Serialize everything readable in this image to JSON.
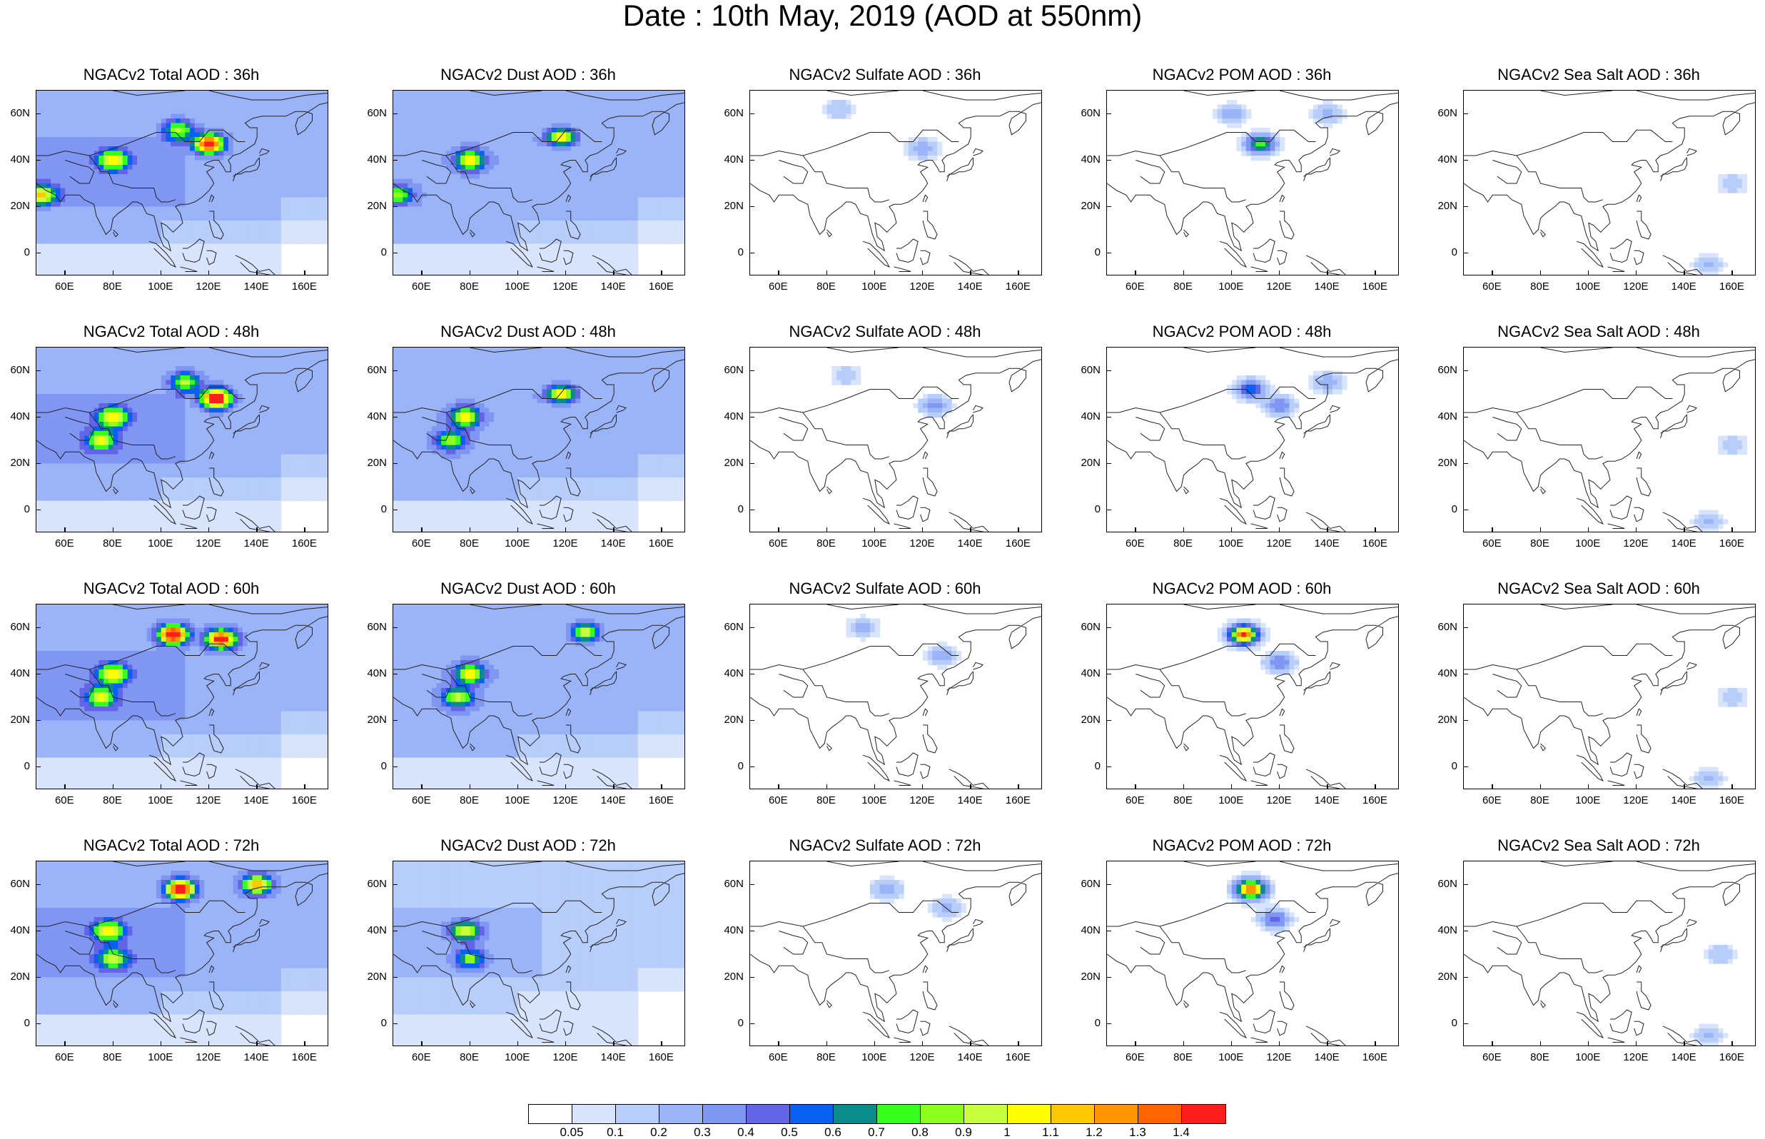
{
  "figure": {
    "title": "Date : 10th May, 2019 (AOD at 550nm)"
  },
  "axes": {
    "lat_labels": [
      "60N",
      "40N",
      "20N",
      "0"
    ],
    "lon_labels": [
      "60E",
      "80E",
      "100E",
      "120E",
      "140E",
      "160E"
    ],
    "lat_range": [
      -10,
      70
    ],
    "lon_range": [
      48,
      170
    ]
  },
  "panels": [
    {
      "title": "NGACv2 Total AOD : 36h",
      "species": "total",
      "hour": 36
    },
    {
      "title": "NGACv2 Dust AOD : 36h",
      "species": "dust",
      "hour": 36
    },
    {
      "title": "NGACv2 Sulfate AOD : 36h",
      "species": "sulfate",
      "hour": 36
    },
    {
      "title": "NGACv2 POM AOD : 36h",
      "species": "pom",
      "hour": 36
    },
    {
      "title": "NGACv2 Sea Salt AOD : 36h",
      "species": "seasalt",
      "hour": 36
    },
    {
      "title": "NGACv2 Total AOD : 48h",
      "species": "total",
      "hour": 48
    },
    {
      "title": "NGACv2 Dust AOD : 48h",
      "species": "dust",
      "hour": 48
    },
    {
      "title": "NGACv2 Sulfate AOD : 48h",
      "species": "sulfate",
      "hour": 48
    },
    {
      "title": "NGACv2 POM AOD : 48h",
      "species": "pom",
      "hour": 48
    },
    {
      "title": "NGACv2 Sea Salt AOD : 48h",
      "species": "seasalt",
      "hour": 48
    },
    {
      "title": "NGACv2 Total AOD : 60h",
      "species": "total",
      "hour": 60
    },
    {
      "title": "NGACv2 Dust AOD : 60h",
      "species": "dust",
      "hour": 60
    },
    {
      "title": "NGACv2 Sulfate AOD : 60h",
      "species": "sulfate",
      "hour": 60
    },
    {
      "title": "NGACv2 POM AOD : 60h",
      "species": "pom",
      "hour": 60
    },
    {
      "title": "NGACv2 Sea Salt AOD : 60h",
      "species": "seasalt",
      "hour": 60
    },
    {
      "title": "NGACv2 Total AOD : 72h",
      "species": "total",
      "hour": 72
    },
    {
      "title": "NGACv2 Dust AOD : 72h",
      "species": "dust",
      "hour": 72
    },
    {
      "title": "NGACv2 Sulfate AOD : 72h",
      "species": "sulfate",
      "hour": 72
    },
    {
      "title": "NGACv2 POM AOD : 72h",
      "species": "pom",
      "hour": 72
    },
    {
      "title": "NGACv2 Sea Salt  AOD : 72h",
      "species": "seasalt",
      "hour": 72
    }
  ],
  "colorbar": {
    "labels": [
      "0.05",
      "0.1",
      "0.2",
      "0.3",
      "0.4",
      "0.5",
      "0.6",
      "0.7",
      "0.8",
      "0.9",
      "1",
      "1.1",
      "1.2",
      "1.3",
      "1.4"
    ],
    "colors": [
      "#ffffff",
      "#d8e4fb",
      "#b7cdfa",
      "#9bb4f8",
      "#7f97f2",
      "#6464e6",
      "#0a60f2",
      "#0b8c8c",
      "#37ff1e",
      "#8cff1e",
      "#c8ff3c",
      "#ffff00",
      "#ffc800",
      "#ff9600",
      "#ff6400",
      "#ff1e1e"
    ]
  },
  "features": {
    "total": {
      "36": {
        "base": 0.25,
        "hot": [
          [
            120,
            47,
            1.3
          ],
          [
            107,
            53,
            0.7
          ],
          [
            80,
            40,
            0.8
          ],
          [
            50,
            25,
            0.8
          ]
        ]
      },
      "48": {
        "base": 0.25,
        "hot": [
          [
            123,
            48,
            1.4
          ],
          [
            110,
            55,
            0.7
          ],
          [
            80,
            40,
            0.8
          ],
          [
            75,
            30,
            0.7
          ]
        ]
      },
      "60": {
        "base": 0.25,
        "hot": [
          [
            105,
            57,
            1.4
          ],
          [
            125,
            55,
            1.3
          ],
          [
            80,
            40,
            0.8
          ],
          [
            75,
            30,
            0.7
          ]
        ]
      },
      "72": {
        "base": 0.25,
        "hot": [
          [
            108,
            58,
            1.4
          ],
          [
            140,
            60,
            1.0
          ],
          [
            78,
            40,
            0.8
          ],
          [
            80,
            28,
            0.7
          ]
        ]
      }
    },
    "dust": {
      "36": {
        "base": 0.2,
        "hot": [
          [
            118,
            50,
            0.9
          ],
          [
            80,
            40,
            0.8
          ],
          [
            50,
            25,
            0.6
          ]
        ]
      },
      "48": {
        "base": 0.2,
        "hot": [
          [
            118,
            50,
            0.9
          ],
          [
            78,
            40,
            0.8
          ],
          [
            72,
            30,
            0.6
          ]
        ]
      },
      "60": {
        "base": 0.2,
        "hot": [
          [
            128,
            58,
            0.8
          ],
          [
            80,
            40,
            0.8
          ],
          [
            75,
            30,
            0.7
          ]
        ]
      },
      "72": {
        "base": 0.18,
        "hot": [
          [
            78,
            40,
            0.8
          ],
          [
            80,
            28,
            0.6
          ]
        ]
      }
    },
    "sulfate": {
      "36": {
        "base": 0.0,
        "hot": [
          [
            120,
            45,
            0.3
          ],
          [
            85,
            62,
            0.2
          ]
        ]
      },
      "48": {
        "base": 0.0,
        "hot": [
          [
            125,
            45,
            0.35
          ],
          [
            88,
            58,
            0.2
          ]
        ]
      },
      "60": {
        "base": 0.0,
        "hot": [
          [
            128,
            48,
            0.3
          ],
          [
            95,
            60,
            0.25
          ]
        ]
      },
      "72": {
        "base": 0.0,
        "hot": [
          [
            130,
            50,
            0.25
          ],
          [
            105,
            58,
            0.3
          ]
        ]
      }
    },
    "pom": {
      "36": {
        "base": 0.0,
        "hot": [
          [
            112,
            47,
            0.8
          ],
          [
            100,
            60,
            0.3
          ],
          [
            140,
            60,
            0.25
          ]
        ]
      },
      "48": {
        "base": 0.0,
        "hot": [
          [
            108,
            52,
            0.6
          ],
          [
            120,
            45,
            0.4
          ],
          [
            140,
            55,
            0.3
          ]
        ]
      },
      "60": {
        "base": 0.0,
        "hot": [
          [
            105,
            57,
            1.4
          ],
          [
            120,
            45,
            0.4
          ]
        ]
      },
      "72": {
        "base": 0.0,
        "hot": [
          [
            108,
            58,
            1.4
          ],
          [
            118,
            45,
            0.5
          ]
        ]
      }
    },
    "seasalt": {
      "36": {
        "base": 0.0,
        "hot": [
          [
            160,
            30,
            0.2
          ],
          [
            150,
            -5,
            0.25
          ]
        ]
      },
      "48": {
        "base": 0.0,
        "hot": [
          [
            160,
            28,
            0.2
          ],
          [
            150,
            -5,
            0.25
          ]
        ]
      },
      "60": {
        "base": 0.0,
        "hot": [
          [
            160,
            30,
            0.2
          ],
          [
            150,
            -5,
            0.25
          ]
        ]
      },
      "72": {
        "base": 0.0,
        "hot": [
          [
            155,
            30,
            0.2
          ],
          [
            150,
            -5,
            0.25
          ]
        ]
      }
    }
  }
}
